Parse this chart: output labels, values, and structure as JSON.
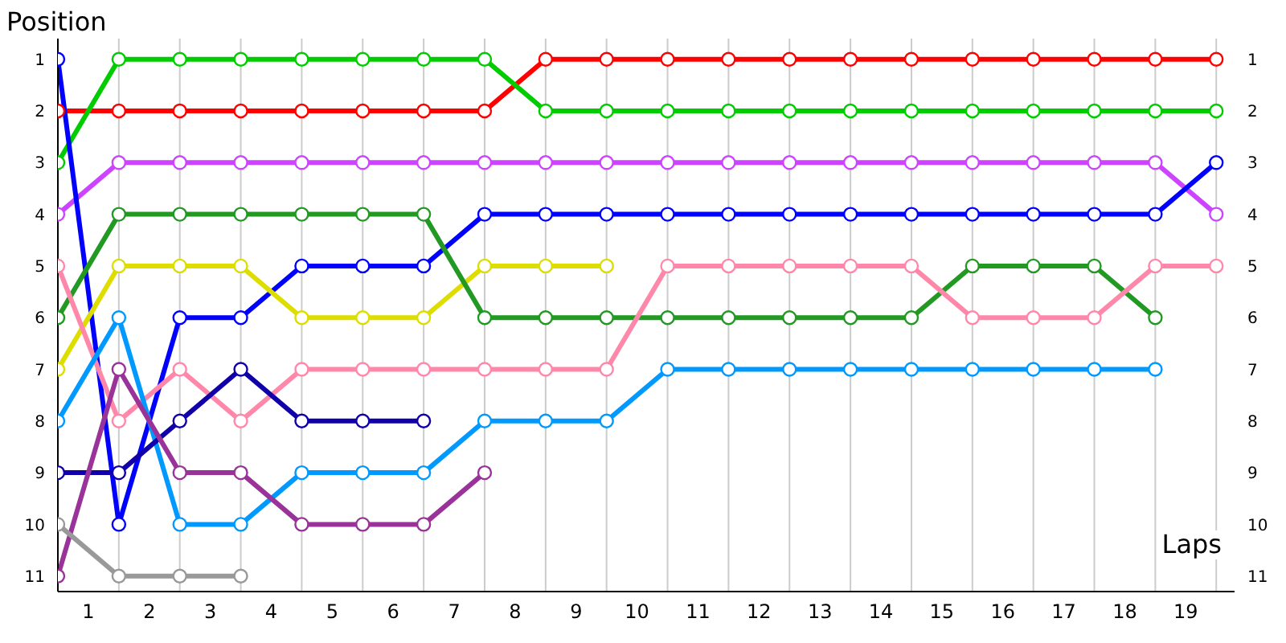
{
  "chart_data": {
    "type": "line",
    "xlabel": "Laps",
    "ylabel": "Position",
    "x": [
      0,
      1,
      2,
      3,
      4,
      5,
      6,
      7,
      8,
      9,
      10,
      11,
      12,
      13,
      14,
      15,
      16,
      17,
      18,
      19
    ],
    "xlim": [
      0,
      19.3
    ],
    "xticks": [
      {
        "value": 0,
        "label": null
      },
      {
        "value": 0.5,
        "label": "1"
      },
      {
        "value": 1,
        "label": null
      },
      {
        "value": 1.5,
        "label": "2"
      },
      {
        "value": 2,
        "label": null
      },
      {
        "value": 2.5,
        "label": "3"
      },
      {
        "value": 3,
        "label": null
      },
      {
        "value": 3.5,
        "label": "4"
      },
      {
        "value": 4,
        "label": null
      },
      {
        "value": 4.5,
        "label": "5"
      },
      {
        "value": 5,
        "label": null
      },
      {
        "value": 5.5,
        "label": "6"
      },
      {
        "value": 6,
        "label": null
      },
      {
        "value": 6.5,
        "label": "7"
      },
      {
        "value": 7,
        "label": null
      },
      {
        "value": 7.5,
        "label": "8"
      },
      {
        "value": 8,
        "label": null
      },
      {
        "value": 8.5,
        "label": "9"
      },
      {
        "value": 9,
        "label": null
      },
      {
        "value": 9.5,
        "label": "10"
      },
      {
        "value": 10,
        "label": null
      },
      {
        "value": 10.5,
        "label": "11"
      },
      {
        "value": 11,
        "label": null
      },
      {
        "value": 11.5,
        "label": "12"
      },
      {
        "value": 12,
        "label": null
      },
      {
        "value": 12.5,
        "label": "13"
      },
      {
        "value": 13,
        "label": null
      },
      {
        "value": 13.5,
        "label": "14"
      },
      {
        "value": 14,
        "label": null
      },
      {
        "value": 14.5,
        "label": "15"
      },
      {
        "value": 15,
        "label": null
      },
      {
        "value": 15.5,
        "label": "16"
      },
      {
        "value": 16,
        "label": null
      },
      {
        "value": 16.5,
        "label": "17"
      },
      {
        "value": 17,
        "label": null
      },
      {
        "value": 17.5,
        "label": "18"
      },
      {
        "value": 18,
        "label": null
      },
      {
        "value": 18.5,
        "label": "19"
      },
      {
        "value": 19,
        "label": null
      }
    ],
    "ylim": [
      11.3,
      0.6
    ],
    "yticks": [
      1,
      2,
      3,
      4,
      5,
      6,
      7,
      8,
      9,
      10,
      11
    ],
    "y2lim": [
      11.3,
      0.6
    ],
    "y2ticks": [
      1,
      2,
      3,
      4,
      5,
      6,
      7,
      8,
      9,
      10,
      11
    ],
    "grid": true,
    "marker": "circle",
    "line_style": "solid",
    "series": [
      {
        "color": "#ff0000",
        "values": [
          2,
          2,
          2,
          2,
          2,
          2,
          2,
          2,
          1,
          1,
          1,
          1,
          1,
          1,
          1,
          1,
          1,
          1,
          1,
          1
        ]
      },
      {
        "color": "#00cc00",
        "values": [
          3,
          1,
          1,
          1,
          1,
          1,
          1,
          1,
          2,
          2,
          2,
          2,
          2,
          2,
          2,
          2,
          2,
          2,
          2,
          2
        ]
      },
      {
        "color": "#cc44ff",
        "values": [
          4,
          3,
          3,
          3,
          3,
          3,
          3,
          3,
          3,
          3,
          3,
          3,
          3,
          3,
          3,
          3,
          3,
          3,
          3,
          4
        ]
      },
      {
        "color": "#0000ff",
        "values": [
          1,
          10,
          6,
          6,
          5,
          5,
          5,
          4,
          4,
          4,
          4,
          4,
          4,
          4,
          4,
          4,
          4,
          4,
          4,
          3
        ]
      },
      {
        "color": "#dddd00",
        "values": [
          7,
          5,
          5,
          5,
          6,
          6,
          6,
          5,
          5,
          5,
          null,
          null,
          null,
          null,
          null,
          null,
          null,
          null,
          null,
          null
        ]
      },
      {
        "color": "#229922",
        "values": [
          6,
          4,
          4,
          4,
          4,
          4,
          4,
          6,
          6,
          6,
          6,
          6,
          6,
          6,
          6,
          5,
          5,
          5,
          6,
          null
        ]
      },
      {
        "color": "#ff88aa",
        "values": [
          5,
          8,
          7,
          8,
          7,
          7,
          7,
          7,
          7,
          7,
          5,
          5,
          5,
          5,
          5,
          6,
          6,
          6,
          5,
          5
        ]
      },
      {
        "color": "#0099ff",
        "values": [
          8,
          6,
          10,
          10,
          9,
          9,
          9,
          8,
          8,
          8,
          7,
          7,
          7,
          7,
          7,
          7,
          7,
          7,
          7,
          null
        ]
      },
      {
        "color": "#1100aa",
        "values": [
          9,
          9,
          8,
          7,
          8,
          8,
          8,
          null,
          null,
          null,
          null,
          null,
          null,
          null,
          null,
          null,
          null,
          null,
          null,
          null
        ]
      },
      {
        "color": "#993399",
        "values": [
          11,
          7,
          9,
          9,
          10,
          10,
          10,
          9,
          null,
          null,
          null,
          null,
          null,
          null,
          null,
          null,
          null,
          null,
          null,
          null
        ]
      },
      {
        "color": "#999999",
        "values": [
          10,
          11,
          11,
          11,
          null,
          null,
          null,
          null,
          null,
          null,
          null,
          null,
          null,
          null,
          null,
          null,
          null,
          null,
          null,
          null
        ]
      }
    ]
  }
}
